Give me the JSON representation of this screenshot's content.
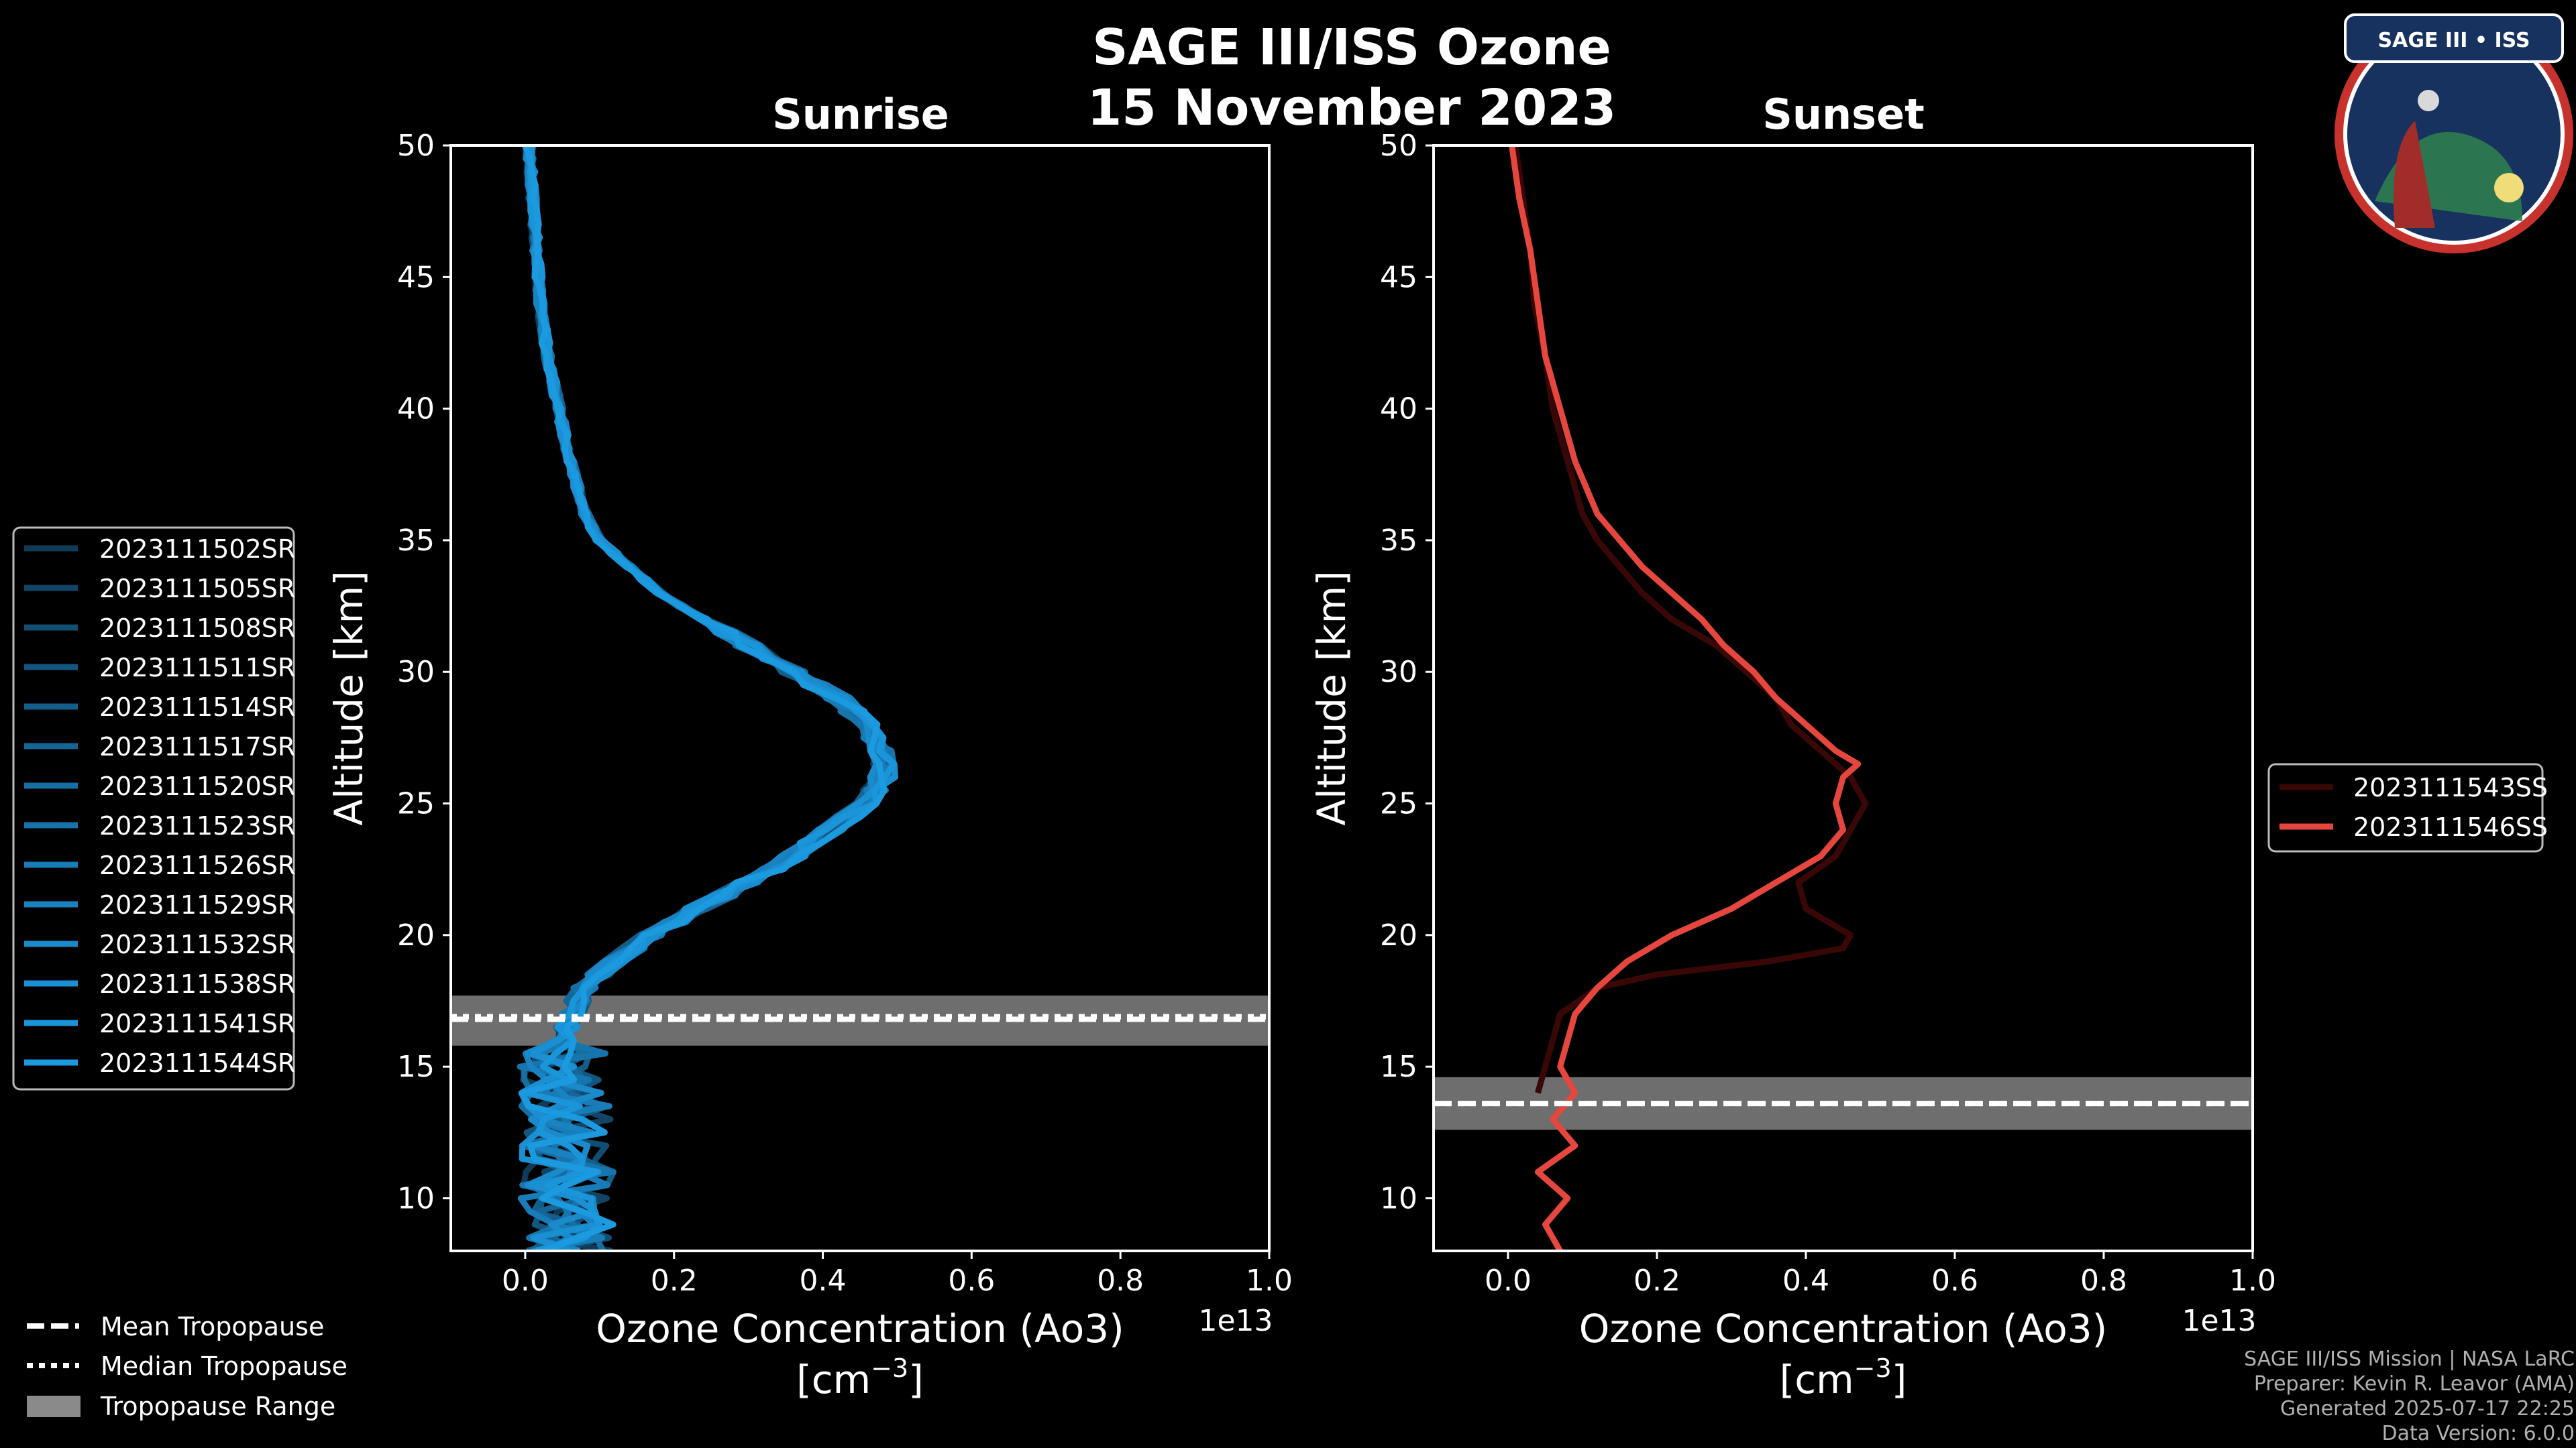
{
  "chart_data": {
    "type": "line",
    "title": "SAGE III/ISS Ozone",
    "date": "15 November 2023",
    "panels": [
      {
        "name": "sunrise",
        "title": "Sunrise",
        "xlabel": "Ozone Concentration (Ao3)",
        "xunit_base": "[cm",
        "xunit_exp": "−3",
        "xunit_close": "]",
        "ylabel": "Altitude [km]",
        "offset_label": "1e13",
        "xlim": [
          -0.1,
          1.0
        ],
        "ylim": [
          8,
          50
        ],
        "xticks": [
          "0.0",
          "0.2",
          "0.4",
          "0.6",
          "0.8",
          "1.0"
        ],
        "yticks": [
          "10",
          "15",
          "20",
          "25",
          "30",
          "35",
          "40",
          "45",
          "50"
        ],
        "tropopause": {
          "mean": 16.8,
          "median": 16.9,
          "range": [
            15.8,
            17.7
          ]
        },
        "series": [
          {
            "name": "2023111502SR",
            "color": "#0f3b57"
          },
          {
            "name": "2023111505SR",
            "color": "#114566"
          },
          {
            "name": "2023111508SR",
            "color": "#124d72"
          },
          {
            "name": "2023111511SR",
            "color": "#13567f"
          },
          {
            "name": "2023111514SR",
            "color": "#145e8c"
          },
          {
            "name": "2023111517SR",
            "color": "#156697"
          },
          {
            "name": "2023111520SR",
            "color": "#166ea3"
          },
          {
            "name": "2023111523SR",
            "color": "#1775ad"
          },
          {
            "name": "2023111526SR",
            "color": "#187cb8"
          },
          {
            "name": "2023111529SR",
            "color": "#1983c2"
          },
          {
            "name": "2023111532SR",
            "color": "#1a8acb"
          },
          {
            "name": "2023111538SR",
            "color": "#1a90d3"
          },
          {
            "name": "2023111541SR",
            "color": "#1b95da"
          },
          {
            "name": "2023111544SR",
            "color": "#1c9ae0"
          }
        ],
        "profile_alt": [
          8,
          9,
          10,
          11,
          12,
          13,
          14,
          15,
          16,
          17,
          18,
          19,
          20,
          21,
          22,
          23,
          24,
          25,
          26,
          27,
          28,
          29,
          30,
          31,
          32,
          33,
          34,
          35,
          36,
          38,
          40,
          42,
          44,
          46,
          48,
          50
        ],
        "profile_base": [
          0.06,
          0.06,
          0.05,
          0.06,
          0.05,
          0.06,
          0.05,
          0.05,
          0.05,
          0.06,
          0.08,
          0.12,
          0.17,
          0.23,
          0.3,
          0.36,
          0.41,
          0.46,
          0.48,
          0.48,
          0.46,
          0.42,
          0.36,
          0.3,
          0.24,
          0.18,
          0.14,
          0.1,
          0.08,
          0.06,
          0.045,
          0.03,
          0.02,
          0.015,
          0.01,
          0.005
        ]
      },
      {
        "name": "sunset",
        "title": "Sunset",
        "xlabel": "Ozone Concentration (Ao3)",
        "xunit_base": "[cm",
        "xunit_exp": "−3",
        "xunit_close": "]",
        "ylabel": "Altitude [km]",
        "offset_label": "1e13",
        "xlim": [
          -0.1,
          1.0
        ],
        "ylim": [
          8,
          50
        ],
        "xticks": [
          "0.0",
          "0.2",
          "0.4",
          "0.6",
          "0.8",
          "1.0"
        ],
        "yticks": [
          "10",
          "15",
          "20",
          "25",
          "30",
          "35",
          "40",
          "45",
          "50"
        ],
        "tropopause": {
          "mean": 13.6,
          "median": 13.6,
          "range": [
            12.6,
            14.6
          ]
        },
        "series": [
          {
            "name": "2023111543SS",
            "color": "#3a0707",
            "alt": [
              14,
              15,
              16,
              17,
              18,
              18.5,
              19,
              19.5,
              20,
              21,
              22,
              23,
              24,
              25,
              26,
              27,
              28,
              29,
              30,
              31,
              32,
              33,
              34,
              35,
              36,
              38,
              40,
              42,
              44,
              46,
              48,
              50
            ],
            "x": [
              0.04,
              0.05,
              0.06,
              0.07,
              0.12,
              0.2,
              0.35,
              0.45,
              0.46,
              0.4,
              0.39,
              0.44,
              0.46,
              0.48,
              0.46,
              0.42,
              0.38,
              0.36,
              0.32,
              0.28,
              0.22,
              0.18,
              0.15,
              0.12,
              0.1,
              0.08,
              0.06,
              0.05,
              0.035,
              0.03,
              0.02,
              0.01
            ]
          },
          {
            "name": "2023111546SS",
            "color": "#e5473e",
            "alt": [
              8,
              9,
              10,
              11,
              12,
              13,
              14,
              15,
              16,
              17,
              18,
              19,
              20,
              21,
              22,
              23,
              24,
              25,
              26,
              26.5,
              27,
              28,
              29,
              30,
              31,
              32,
              33,
              34,
              35,
              36,
              38,
              40,
              42,
              44,
              46,
              48,
              50
            ],
            "x": [
              0.07,
              0.05,
              0.08,
              0.04,
              0.09,
              0.06,
              0.09,
              0.07,
              0.08,
              0.09,
              0.12,
              0.16,
              0.22,
              0.3,
              0.36,
              0.42,
              0.45,
              0.44,
              0.45,
              0.47,
              0.44,
              0.4,
              0.36,
              0.33,
              0.29,
              0.26,
              0.22,
              0.18,
              0.15,
              0.12,
              0.09,
              0.07,
              0.05,
              0.04,
              0.03,
              0.015,
              0.005
            ]
          }
        ]
      }
    ],
    "legend_common": [
      {
        "style": "dashed",
        "label": "Mean Tropopause"
      },
      {
        "style": "dotted",
        "label": "Median Tropopause"
      },
      {
        "style": "patch",
        "label": "Tropopause Range"
      }
    ]
  },
  "footer": [
    "SAGE III/ISS Mission | NASA LaRC",
    "Preparer: Kevin R. Leavor (AMA)",
    "Generated 2025-07-17 22:25",
    "Data Version: 6.0.0"
  ],
  "logo": {
    "title": "SAGE III • ISS"
  },
  "colors": {
    "background": "#000000",
    "tropopause_band": "#8a8a8a",
    "axes": "#ffffff"
  }
}
